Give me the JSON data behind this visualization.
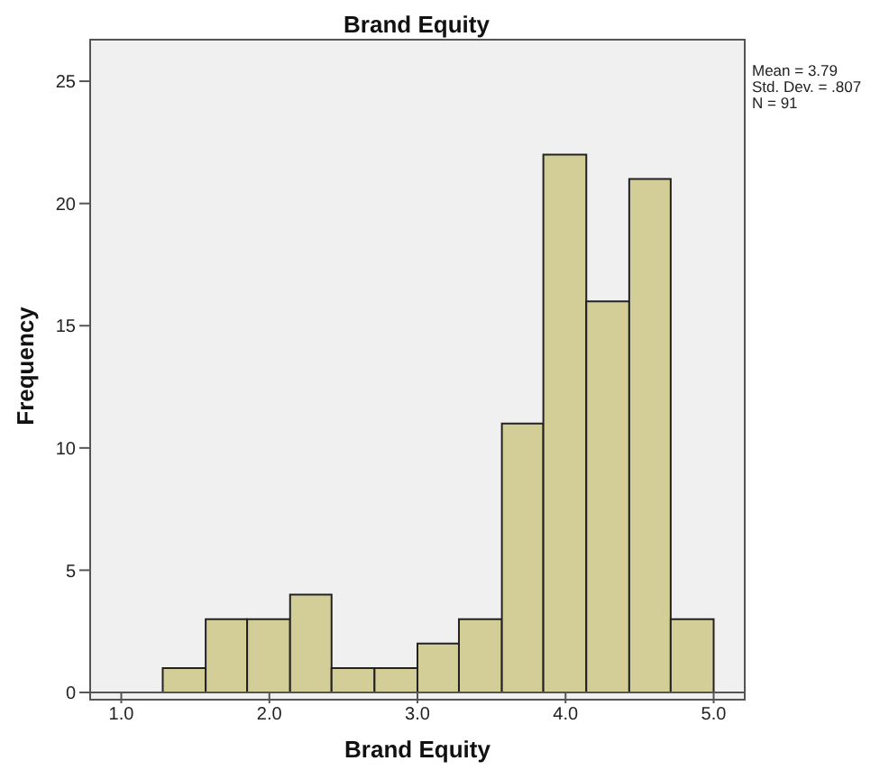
{
  "chart_data": {
    "type": "histogram",
    "title": "Brand Equity",
    "xlabel": "Brand Equity",
    "ylabel": "Frequency",
    "bins": [
      1.28,
      1.57,
      1.85,
      2.14,
      2.42,
      2.71,
      3.0,
      3.28,
      3.57,
      3.85,
      4.14,
      4.43,
      4.71,
      5.0
    ],
    "values": [
      1,
      3,
      3,
      4,
      1,
      1,
      2,
      3,
      11,
      22,
      16,
      21,
      3
    ],
    "color": "#d3ce97",
    "xlim": [
      0.79,
      5.21
    ],
    "xticks": [
      {
        "value": 1,
        "label": "1.0"
      },
      {
        "value": 2,
        "label": "2.0"
      },
      {
        "value": 3,
        "label": "3.0"
      },
      {
        "value": 4,
        "label": "4.0"
      },
      {
        "value": 5,
        "label": "5.0"
      }
    ],
    "ylim": [
      0,
      26.7
    ],
    "yticks": [
      0,
      5,
      10,
      15,
      20,
      25
    ],
    "annotations": [
      "Mean = 3.79",
      "Std. Dev. = .807",
      "N = 91"
    ]
  }
}
